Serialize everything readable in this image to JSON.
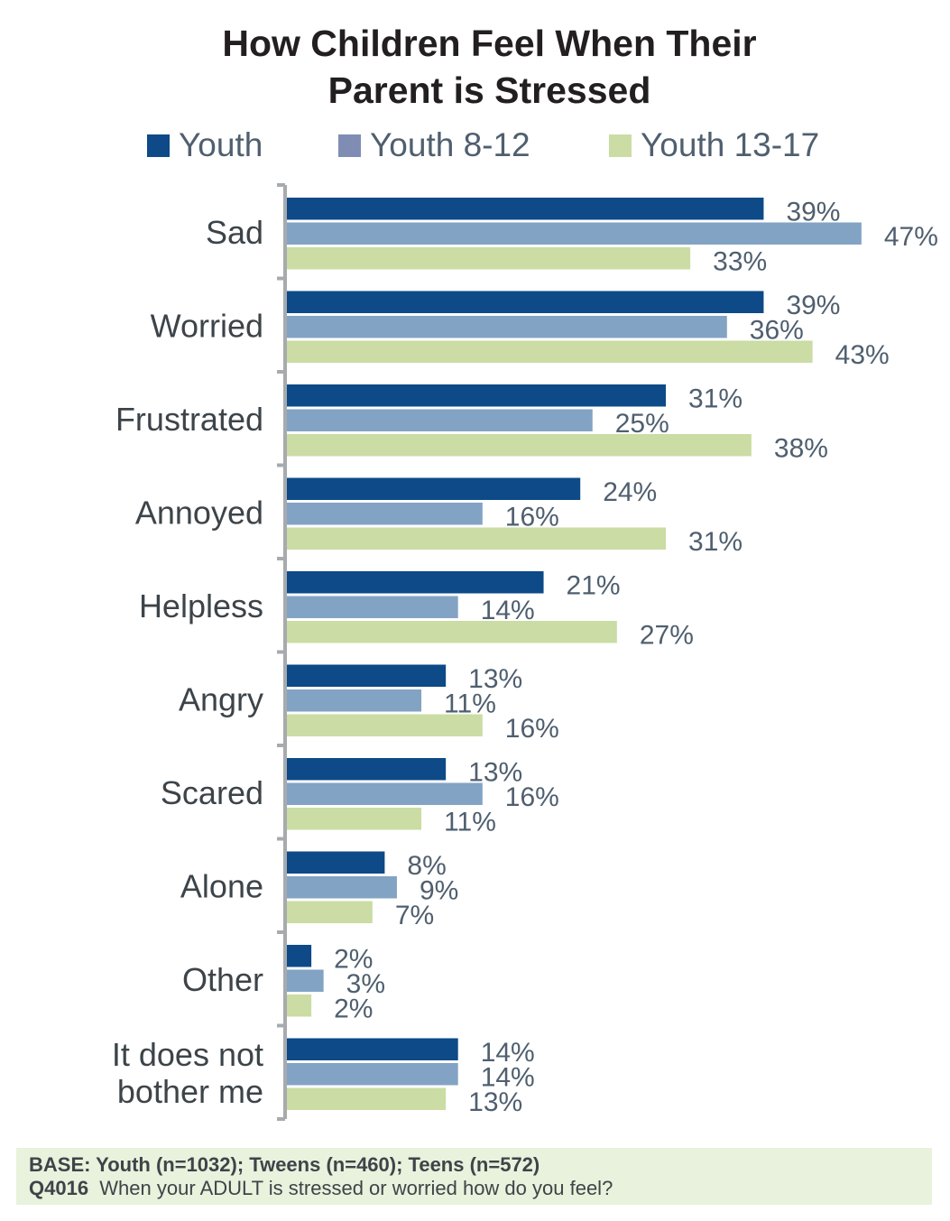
{
  "chart_data": {
    "type": "bar",
    "orientation": "horizontal",
    "title": "How Children Feel When Their Parent is Stressed",
    "title_lines": [
      "How Children Feel When Their",
      "Parent is Stressed"
    ],
    "xlabel": "",
    "ylabel": "",
    "xlim": [
      0,
      50
    ],
    "grid": false,
    "legend_position": "top",
    "categories": [
      "Sad",
      "Worried",
      "Frustrated",
      "Annoyed",
      "Helpless",
      "Angry",
      "Scared",
      "Alone",
      "Other",
      "It does not bother me"
    ],
    "category_lines": [
      [
        "Sad"
      ],
      [
        "Worried"
      ],
      [
        "Frustrated"
      ],
      [
        "Annoyed"
      ],
      [
        "Helpless"
      ],
      [
        "Angry"
      ],
      [
        "Scared"
      ],
      [
        "Alone"
      ],
      [
        "Other"
      ],
      [
        "It does not",
        "bother me"
      ]
    ],
    "series": [
      {
        "name": "Youth",
        "color": "#0d4a87",
        "values": [
          39,
          39,
          31,
          24,
          21,
          13,
          13,
          8,
          2,
          14
        ]
      },
      {
        "name": "Youth 8-12",
        "color": "#82a3c4",
        "legend_color": "#7f8db5",
        "values": [
          47,
          36,
          25,
          16,
          14,
          11,
          16,
          9,
          3,
          14
        ]
      },
      {
        "name": "Youth 13-17",
        "color": "#cbdca4",
        "values": [
          33,
          43,
          38,
          31,
          27,
          16,
          11,
          7,
          2,
          13
        ]
      }
    ],
    "value_suffix": "%"
  },
  "footer": {
    "base_label": "BASE: Youth (n=1032); Tweens (n=460); Teens (n=572)",
    "question_id": "Q4016",
    "question_text": "When your ADULT is stressed or worried how do you feel?"
  }
}
